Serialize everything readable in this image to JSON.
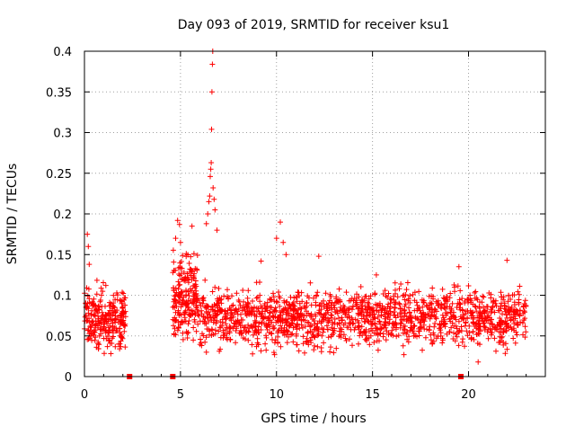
{
  "chart_data": {
    "type": "scatter",
    "title": "Day 093 of 2019, SRMTID for receiver ksu1",
    "xlabel": "GPS time / hours",
    "ylabel": "SRMTID / TECUs",
    "xlim": [
      0,
      24
    ],
    "ylim": [
      0,
      0.4
    ],
    "xticks": [
      "0",
      "5",
      "10",
      "15",
      "20"
    ],
    "xtick_values": [
      0,
      5,
      10,
      15,
      20
    ],
    "yticks": [
      "0",
      "0.05",
      "0.1",
      "0.15",
      "0.2",
      "0.25",
      "0.3",
      "0.35",
      "0.4"
    ],
    "ytick_values": [
      0,
      0.05,
      0.1,
      0.15,
      0.2,
      0.25,
      0.3,
      0.35,
      0.4
    ],
    "grid": true,
    "marker": "+",
    "color": "#ff0000",
    "series": [
      {
        "name": "SRMTID",
        "segments": [
          {
            "x_start": 0.0,
            "x_end": 2.15,
            "density": 260,
            "base": 0.072,
            "spread": 0.055
          },
          {
            "x_start": 4.6,
            "x_end": 5.9,
            "density": 200,
            "base": 0.095,
            "spread": 0.07
          },
          {
            "x_start": 5.9,
            "x_end": 23.0,
            "density": 1500,
            "base": 0.072,
            "spread": 0.05
          }
        ],
        "highlights": [
          {
            "x": 0.15,
            "y": 0.175
          },
          {
            "x": 0.2,
            "y": 0.16
          },
          {
            "x": 0.25,
            "y": 0.138
          },
          {
            "x": 4.85,
            "y": 0.192
          },
          {
            "x": 4.95,
            "y": 0.187
          },
          {
            "x": 4.75,
            "y": 0.17
          },
          {
            "x": 5.0,
            "y": 0.165
          },
          {
            "x": 5.3,
            "y": 0.151
          },
          {
            "x": 5.6,
            "y": 0.185
          },
          {
            "x": 6.35,
            "y": 0.188
          },
          {
            "x": 6.42,
            "y": 0.2
          },
          {
            "x": 6.48,
            "y": 0.215
          },
          {
            "x": 6.52,
            "y": 0.222
          },
          {
            "x": 6.55,
            "y": 0.246
          },
          {
            "x": 6.58,
            "y": 0.255
          },
          {
            "x": 6.6,
            "y": 0.263
          },
          {
            "x": 6.62,
            "y": 0.304
          },
          {
            "x": 6.64,
            "y": 0.35
          },
          {
            "x": 6.66,
            "y": 0.384
          },
          {
            "x": 6.68,
            "y": 0.4
          },
          {
            "x": 6.7,
            "y": 0.232
          },
          {
            "x": 6.75,
            "y": 0.218
          },
          {
            "x": 6.8,
            "y": 0.205
          },
          {
            "x": 6.9,
            "y": 0.18
          },
          {
            "x": 10.2,
            "y": 0.19
          },
          {
            "x": 10.0,
            "y": 0.17
          },
          {
            "x": 10.35,
            "y": 0.165
          },
          {
            "x": 10.5,
            "y": 0.15
          },
          {
            "x": 9.2,
            "y": 0.142
          },
          {
            "x": 12.2,
            "y": 0.148
          },
          {
            "x": 15.2,
            "y": 0.125
          },
          {
            "x": 19.5,
            "y": 0.135
          },
          {
            "x": 22.0,
            "y": 0.143
          },
          {
            "x": 20.5,
            "y": 0.018
          },
          {
            "x": 9.9,
            "y": 0.027
          }
        ],
        "outage_markers": [
          2.35,
          4.6,
          19.6
        ]
      }
    ]
  }
}
